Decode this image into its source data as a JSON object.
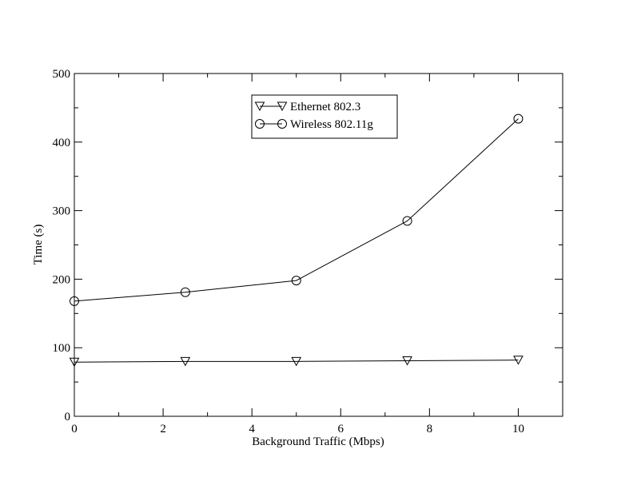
{
  "chart_data": {
    "type": "line",
    "title": "",
    "xlabel": "Background Traffic (Mbps)",
    "ylabel": "Time (s)",
    "xlim": [
      0,
      11
    ],
    "ylim": [
      0,
      500
    ],
    "x_ticks": [
      0,
      2,
      4,
      6,
      8,
      10
    ],
    "x_tick_labels": [
      "0",
      "2",
      "4",
      "6",
      "8",
      "10"
    ],
    "y_ticks": [
      0,
      100,
      200,
      300,
      400,
      500
    ],
    "y_tick_labels": [
      "0",
      "100",
      "200",
      "300",
      "400",
      "500"
    ],
    "x_minor_step": 1,
    "y_minor_step": 50,
    "grid": false,
    "legend_position": "top-center",
    "series": [
      {
        "name": "Ethernet 802.3",
        "marker": "triangle-down",
        "x": [
          0,
          2.5,
          5,
          7.5,
          10
        ],
        "y": [
          79,
          80,
          80,
          81,
          82
        ]
      },
      {
        "name": "Wireless 802.11g",
        "marker": "circle",
        "x": [
          0,
          2.5,
          5,
          7.5,
          10
        ],
        "y": [
          168,
          181,
          198,
          285,
          434
        ]
      }
    ]
  }
}
